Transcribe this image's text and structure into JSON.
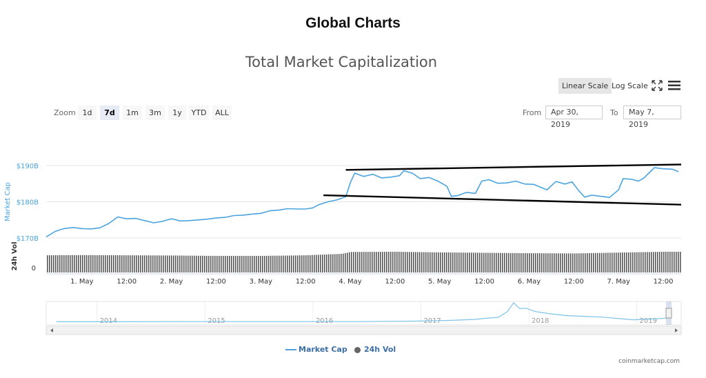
{
  "header": {
    "title": "Global Charts"
  },
  "chart_title": "Total Market Capitalization",
  "scale": {
    "linear_label": "Linear Scale",
    "log_label": "Log Scale",
    "active": "linear"
  },
  "toolbar": {
    "expand_icon": "expand-arrows-icon",
    "menu_icon": "hamburger-menu-icon"
  },
  "zoom": {
    "label": "Zoom",
    "options": [
      "1d",
      "7d",
      "1m",
      "3m",
      "1y",
      "YTD",
      "ALL"
    ],
    "active": "7d"
  },
  "range": {
    "from_label": "From",
    "from_value": "Apr 30, 2019",
    "to_label": "To",
    "to_value": "May 7, 2019"
  },
  "colors": {
    "line": "#4aa3df",
    "volume": "#555555",
    "navigator": "#7cc3ea",
    "trend": "#000000"
  },
  "legend": [
    {
      "label": "Market Cap",
      "marker": "line"
    },
    {
      "label": "24h Vol",
      "marker": "dot"
    }
  ],
  "credit": "coinmarketcap.com",
  "chart_data": {
    "type": "line",
    "title": "Total Market Capitalization",
    "ylabel": "Market Cap",
    "ylabel2": "24h Vol",
    "ylim": [
      170,
      190
    ],
    "y_ticks": [
      "$170B",
      "$180B",
      "$190B"
    ],
    "vol_tick": "0",
    "x_ticks": [
      "1. May",
      "12:00",
      "2. May",
      "12:00",
      "3. May",
      "12:00",
      "4. May",
      "12:00",
      "5. May",
      "12:00",
      "6. May",
      "12:00",
      "7. May",
      "12:00"
    ],
    "x_tick_days": [
      0,
      0.5,
      1,
      1.5,
      2,
      2.5,
      3,
      3.5,
      4,
      4.5,
      5,
      5.5,
      6,
      6.5
    ],
    "x_domain_days": [
      -0.4,
      6.7
    ],
    "series": [
      {
        "name": "Market Cap",
        "unit": "B USD",
        "points": [
          [
            -0.4,
            170.3
          ],
          [
            -0.3,
            171.8
          ],
          [
            -0.2,
            172.6
          ],
          [
            -0.1,
            172.9
          ],
          [
            0.0,
            172.6
          ],
          [
            0.1,
            172.5
          ],
          [
            0.2,
            172.8
          ],
          [
            0.3,
            174.0
          ],
          [
            0.4,
            175.8
          ],
          [
            0.5,
            175.3
          ],
          [
            0.6,
            175.4
          ],
          [
            0.7,
            174.8
          ],
          [
            0.8,
            174.2
          ],
          [
            0.9,
            174.6
          ],
          [
            1.0,
            175.3
          ],
          [
            1.1,
            174.7
          ],
          [
            1.2,
            174.8
          ],
          [
            1.3,
            175.0
          ],
          [
            1.4,
            175.2
          ],
          [
            1.5,
            175.5
          ],
          [
            1.6,
            175.7
          ],
          [
            1.7,
            176.2
          ],
          [
            1.8,
            176.3
          ],
          [
            1.9,
            176.6
          ],
          [
            2.0,
            176.8
          ],
          [
            2.1,
            177.5
          ],
          [
            2.2,
            177.7
          ],
          [
            2.3,
            178.1
          ],
          [
            2.4,
            178.0
          ],
          [
            2.5,
            178.0
          ],
          [
            2.58,
            178.3
          ],
          [
            2.65,
            179.2
          ],
          [
            2.75,
            180.0
          ],
          [
            2.85,
            180.5
          ],
          [
            2.95,
            181.4
          ],
          [
            3.0,
            185.2
          ],
          [
            3.05,
            187.9
          ],
          [
            3.15,
            187.0
          ],
          [
            3.25,
            187.6
          ],
          [
            3.35,
            186.6
          ],
          [
            3.45,
            186.8
          ],
          [
            3.55,
            187.2
          ],
          [
            3.6,
            188.6
          ],
          [
            3.7,
            187.8
          ],
          [
            3.78,
            186.4
          ],
          [
            3.88,
            186.7
          ],
          [
            3.98,
            185.7
          ],
          [
            4.08,
            184.3
          ],
          [
            4.13,
            181.5
          ],
          [
            4.2,
            181.7
          ],
          [
            4.3,
            182.6
          ],
          [
            4.4,
            182.3
          ],
          [
            4.47,
            185.7
          ],
          [
            4.55,
            186.1
          ],
          [
            4.65,
            185.1
          ],
          [
            4.75,
            185.2
          ],
          [
            4.85,
            185.7
          ],
          [
            4.95,
            184.9
          ],
          [
            5.05,
            184.8
          ],
          [
            5.13,
            184.0
          ],
          [
            5.2,
            183.3
          ],
          [
            5.3,
            185.6
          ],
          [
            5.4,
            184.9
          ],
          [
            5.48,
            185.5
          ],
          [
            5.55,
            183.2
          ],
          [
            5.62,
            181.3
          ],
          [
            5.7,
            181.8
          ],
          [
            5.8,
            181.5
          ],
          [
            5.9,
            181.2
          ],
          [
            6.0,
            183.3
          ],
          [
            6.05,
            186.4
          ],
          [
            6.15,
            186.2
          ],
          [
            6.22,
            185.7
          ],
          [
            6.28,
            186.5
          ],
          [
            6.35,
            188.2
          ],
          [
            6.4,
            189.4
          ],
          [
            6.5,
            189.1
          ],
          [
            6.6,
            189.0
          ],
          [
            6.67,
            188.3
          ]
        ]
      },
      {
        "name": "24h Vol",
        "unit": "relative",
        "points": [
          [
            -0.4,
            0.83
          ],
          [
            0.0,
            0.84
          ],
          [
            0.5,
            0.83
          ],
          [
            1.0,
            0.82
          ],
          [
            1.5,
            0.8
          ],
          [
            2.0,
            0.8
          ],
          [
            2.5,
            0.83
          ],
          [
            2.9,
            0.9
          ],
          [
            3.0,
            0.99
          ],
          [
            3.5,
            1.0
          ],
          [
            4.0,
            0.97
          ],
          [
            4.5,
            0.95
          ],
          [
            5.0,
            0.93
          ],
          [
            5.5,
            0.92
          ],
          [
            6.0,
            0.96
          ],
          [
            6.5,
            1.0
          ],
          [
            6.7,
            1.0
          ]
        ]
      }
    ],
    "trendlines": [
      {
        "from": [
          2.95,
          188.8
        ],
        "to": [
          6.7,
          190.3
        ]
      },
      {
        "from": [
          2.7,
          181.8
        ],
        "to": [
          6.7,
          179.2
        ]
      }
    ],
    "navigator": {
      "years": [
        "2014",
        "2015",
        "2016",
        "2017",
        "2018",
        "2019"
      ],
      "year_positions": [
        0.08,
        0.25,
        0.42,
        0.59,
        0.76,
        0.93
      ],
      "profile": [
        [
          0.0,
          0.02
        ],
        [
          0.1,
          0.02
        ],
        [
          0.2,
          0.03
        ],
        [
          0.3,
          0.03
        ],
        [
          0.4,
          0.03
        ],
        [
          0.5,
          0.03
        ],
        [
          0.58,
          0.05
        ],
        [
          0.64,
          0.09
        ],
        [
          0.68,
          0.14
        ],
        [
          0.7,
          0.2
        ],
        [
          0.72,
          0.25
        ],
        [
          0.735,
          0.55
        ],
        [
          0.745,
          1.0
        ],
        [
          0.755,
          0.7
        ],
        [
          0.765,
          0.72
        ],
        [
          0.78,
          0.55
        ],
        [
          0.8,
          0.45
        ],
        [
          0.83,
          0.34
        ],
        [
          0.86,
          0.3
        ],
        [
          0.89,
          0.26
        ],
        [
          0.91,
          0.2
        ],
        [
          0.94,
          0.12
        ],
        [
          0.97,
          0.16
        ],
        [
          1.0,
          0.22
        ]
      ]
    }
  }
}
